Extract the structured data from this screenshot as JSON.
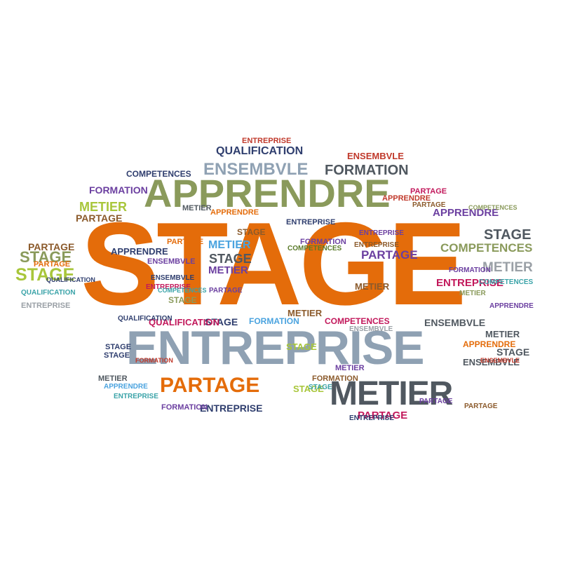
{
  "palette": {
    "orange": "#e46c0a",
    "olive": "#8a9a5b",
    "grayblue": "#8fa1b3",
    "navy": "#2f3e6e",
    "charcoal": "#505860",
    "purple": "#6b3fa0",
    "red": "#c0392b",
    "teal": "#3aa3a8",
    "lime": "#a8c63a",
    "sky": "#4aa3df",
    "magenta": "#c2185b",
    "gray": "#9aa0a6",
    "brown": "#8b5a2b",
    "green": "#5a7a2a"
  },
  "words": [
    "STAGE",
    "ENTREPRISE",
    "APPRENDRE",
    "METIER",
    "PARTAGE",
    "ENSEMBVLE",
    "FORMATION",
    "QUALIFICATION",
    "ENTREPRISE",
    "ENSEMBVLE",
    "COMPETENCES",
    "FORMATION",
    "METIER",
    "PARTAGE",
    "APPRENDRE",
    "STAGE",
    "COMPETENCES",
    "METIER",
    "ENTREPRISE",
    "STAGE",
    "STAGE",
    "PARTAGE",
    "APPRENDRE",
    "QUALIFICATION",
    "METIER",
    "METIER",
    "PARTAGE",
    "STAGE",
    "FORMATION",
    "COMPETENCES",
    "ENSEMBVLE",
    "ENTREPRISE",
    "APPRENDRE",
    "METIER",
    "STAGE",
    "STAGE",
    "ENSEMBVLE",
    "PARTAGE",
    "ENTREPRISE",
    "FORMATION",
    "PARTAGE",
    "PARTAGE",
    "ENSEMBVLE",
    "QUALIFICATION",
    "METIER",
    "APPRENDRE",
    "STAGE",
    "STAGE",
    "ENTREPRISE",
    "STAGE",
    "METIER",
    "COMPETENCES",
    "ENTREPRISE",
    "PARTAGE",
    "FORMATION",
    "ENTREPRISE",
    "QUALIFICATION",
    "STAGE",
    "PARTAGE",
    "ENSEMBVLE",
    "COMPETENCES",
    "METIER",
    "FORMATION",
    "APPRENDRE",
    "ENSEMBVLE",
    "METIER",
    "PARTAGE",
    "ENTREPRISE",
    "STAGE",
    "QUALIFICATION",
    "APPRENDRE",
    "FORMATION",
    "COMPETENCES",
    "ENSEMBVLE",
    "PARTAGE",
    "METIER",
    "STAGE",
    "ENTREPRISE",
    "APPRENDRE",
    "PARTAGE",
    "COMPETENCES",
    "FORMATION",
    "METIER",
    "ENTREPRISE",
    "STAGE"
  ]
}
